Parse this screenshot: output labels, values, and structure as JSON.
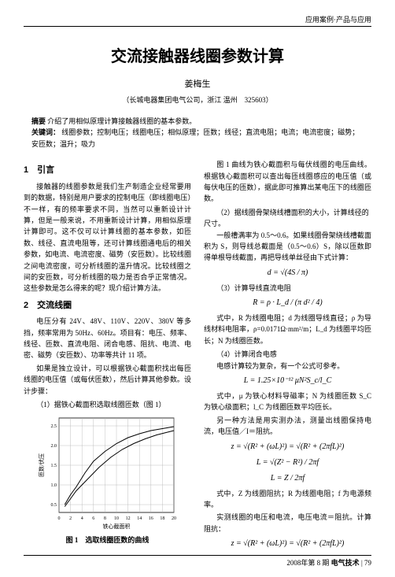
{
  "header": {
    "category": "应用案例·产品与应用"
  },
  "title": "交流接触器线圈参数计算",
  "author": "姜梅生",
  "affiliation": "（长城电器集团电气公司，浙江 温州　325603）",
  "abstract": {
    "label": "摘要",
    "text": "介绍了用相似原理计算接触器线圈的基本参数。"
  },
  "keywords": {
    "label": "关键词：",
    "text": "线圈参数；控制电压；线圈电压；相似原理；匝数；线径；直流电阻；电流；电流密度；磁势；安匝数；温升；吸力"
  },
  "section1": {
    "heading": "1　引言",
    "p1": "接触器的线圈参数是我们生产制造企业经常要用到的数据，特别是用户要求的控制电压（即线圈电压）不一样，有的频率要求不同，当然可以重新设计计算，但是一般来说，不用重新设计计算，用相似原理计算即可。这不仅可以计算线圈的基本参数，如匝数、线径、直流电阻等，还可计算线圈通电后的相关参数，如电流、电流密度、磁势（安匝数）。比较线圈之间电流密度，可分析线圈的温升情况。比较线圈之间的安匝数，可分析线圈的吸力是否合乎正常情况。这些参数是怎么得来的呢？现介绍计算方法。"
  },
  "section2": {
    "heading": "2　交流线圈",
    "p1": "电压分有 24V、48V、110V、220V、380V 等多挡，频率常用为 50Hz、60Hz。项目有：电压、频率、线径、匝数、直流电阻、闭合电感、阻抗、电流、电密、磁势（安匝数）、功率等共计 11 项。",
    "p2": "如果是独立设计，可以根据铁心截面积找出每匝线圈的电压值（或每伏匝数），然后计算其他参数。设计步骤：",
    "sub1": "（1）据铁心截面积选取线圈匝数（图 1）"
  },
  "col2": {
    "p1": "图 1 曲线为铁心截面积与每伏线圈的电压曲线。根据铁心截面积可以查出每匝线圈感应的电压值（或每伏电压的匝数），据此即可推算出某电压下的线圈匝数。",
    "sub2_label": "（2）据线圈骨架绕线槽面积的大小，计算线径的尺寸。",
    "p2": "一般槽满率为 0.5～0.6。如果线圈骨架绕线槽截面积为 S，则导线总截面是（0.5～0.6）S，除以匝数即得单根导线截面，再把导线单丝径由下式计算：",
    "f1": "d = √(4S / π)",
    "sub3_label": "（3）计算导线直流电阻",
    "f2": "R = ρ · L_d / (π d² / 4)",
    "p3": "式中，R 为线圈电阻；d 为线圈导线直径；ρ 为导线材料电阻率，ρ=0.0171Ω·mm²/m；L_d 为线圈平均匝长；N 为线圈匝数。",
    "sub4_label": "（4）计算闭合电感",
    "p4": "电感计算较为复杂，有一个公式可参考。",
    "f3": "L = 1.25×10⁻¹² μN²S_c/l_C",
    "p5": "式中，μ 为铁心材料导磁率；N 为线圈匝数 S_C 为铁心级面积；l_C 为线圈匝数平均匝长。",
    "p6": "另一种方法是用实测办法，测量出线圈保持电流，电压值／I＝阻抗。",
    "f4": "z = √(R² + (ωL)²) = √(R² + (2πfL)²)",
    "f5": "L = √(Z² − R²) / 2πf",
    "f6": "L = Z / 2πf",
    "p7": "式中，Z 为线圈阻抗；R 为线圈电阻；f 为电源频率。",
    "p8": "实测线圈的电压和电流，电压电流＝阻抗。计算阻抗：",
    "f7": "z = √(R² + (ωL)²) = √(R² + (2πfL)²)"
  },
  "chart": {
    "caption": "图 1　选取线圈匝数的曲线",
    "xlabel": "铁心截面积",
    "ylabel": "匝数/伏压",
    "x_ticks": [
      0,
      2,
      4,
      6,
      8,
      10,
      12,
      14,
      16,
      18,
      20
    ],
    "y_ticks": [
      0.5,
      1.0,
      1.5,
      2.0,
      2.5
    ],
    "xlim": [
      0,
      20
    ],
    "ylim": [
      0.3,
      2.7
    ],
    "background_color": "#ffffff",
    "grid_color": "#b0b0b0",
    "curve_color": "#000000",
    "line_width": 1,
    "curve_points": [
      [
        1,
        0.5
      ],
      [
        2,
        0.75
      ],
      [
        3,
        0.95
      ],
      [
        4.5,
        1.3
      ],
      [
        6,
        1.6
      ],
      [
        8,
        1.85
      ],
      [
        10,
        2.05
      ],
      [
        12,
        2.2
      ],
      [
        14,
        2.3
      ],
      [
        16,
        2.38
      ],
      [
        18,
        2.43
      ],
      [
        20,
        2.48
      ]
    ],
    "curve2_points": [
      [
        1,
        0.45
      ],
      [
        2,
        0.65
      ],
      [
        3,
        0.85
      ],
      [
        5,
        1.15
      ],
      [
        7,
        1.45
      ],
      [
        9,
        1.7
      ],
      [
        11,
        1.9
      ],
      [
        13,
        2.05
      ],
      [
        15,
        2.17
      ],
      [
        17,
        2.27
      ],
      [
        20,
        2.38
      ]
    ]
  },
  "footer": {
    "issue": "2008年第 8 期",
    "journal": "电气技术",
    "page": "79"
  }
}
